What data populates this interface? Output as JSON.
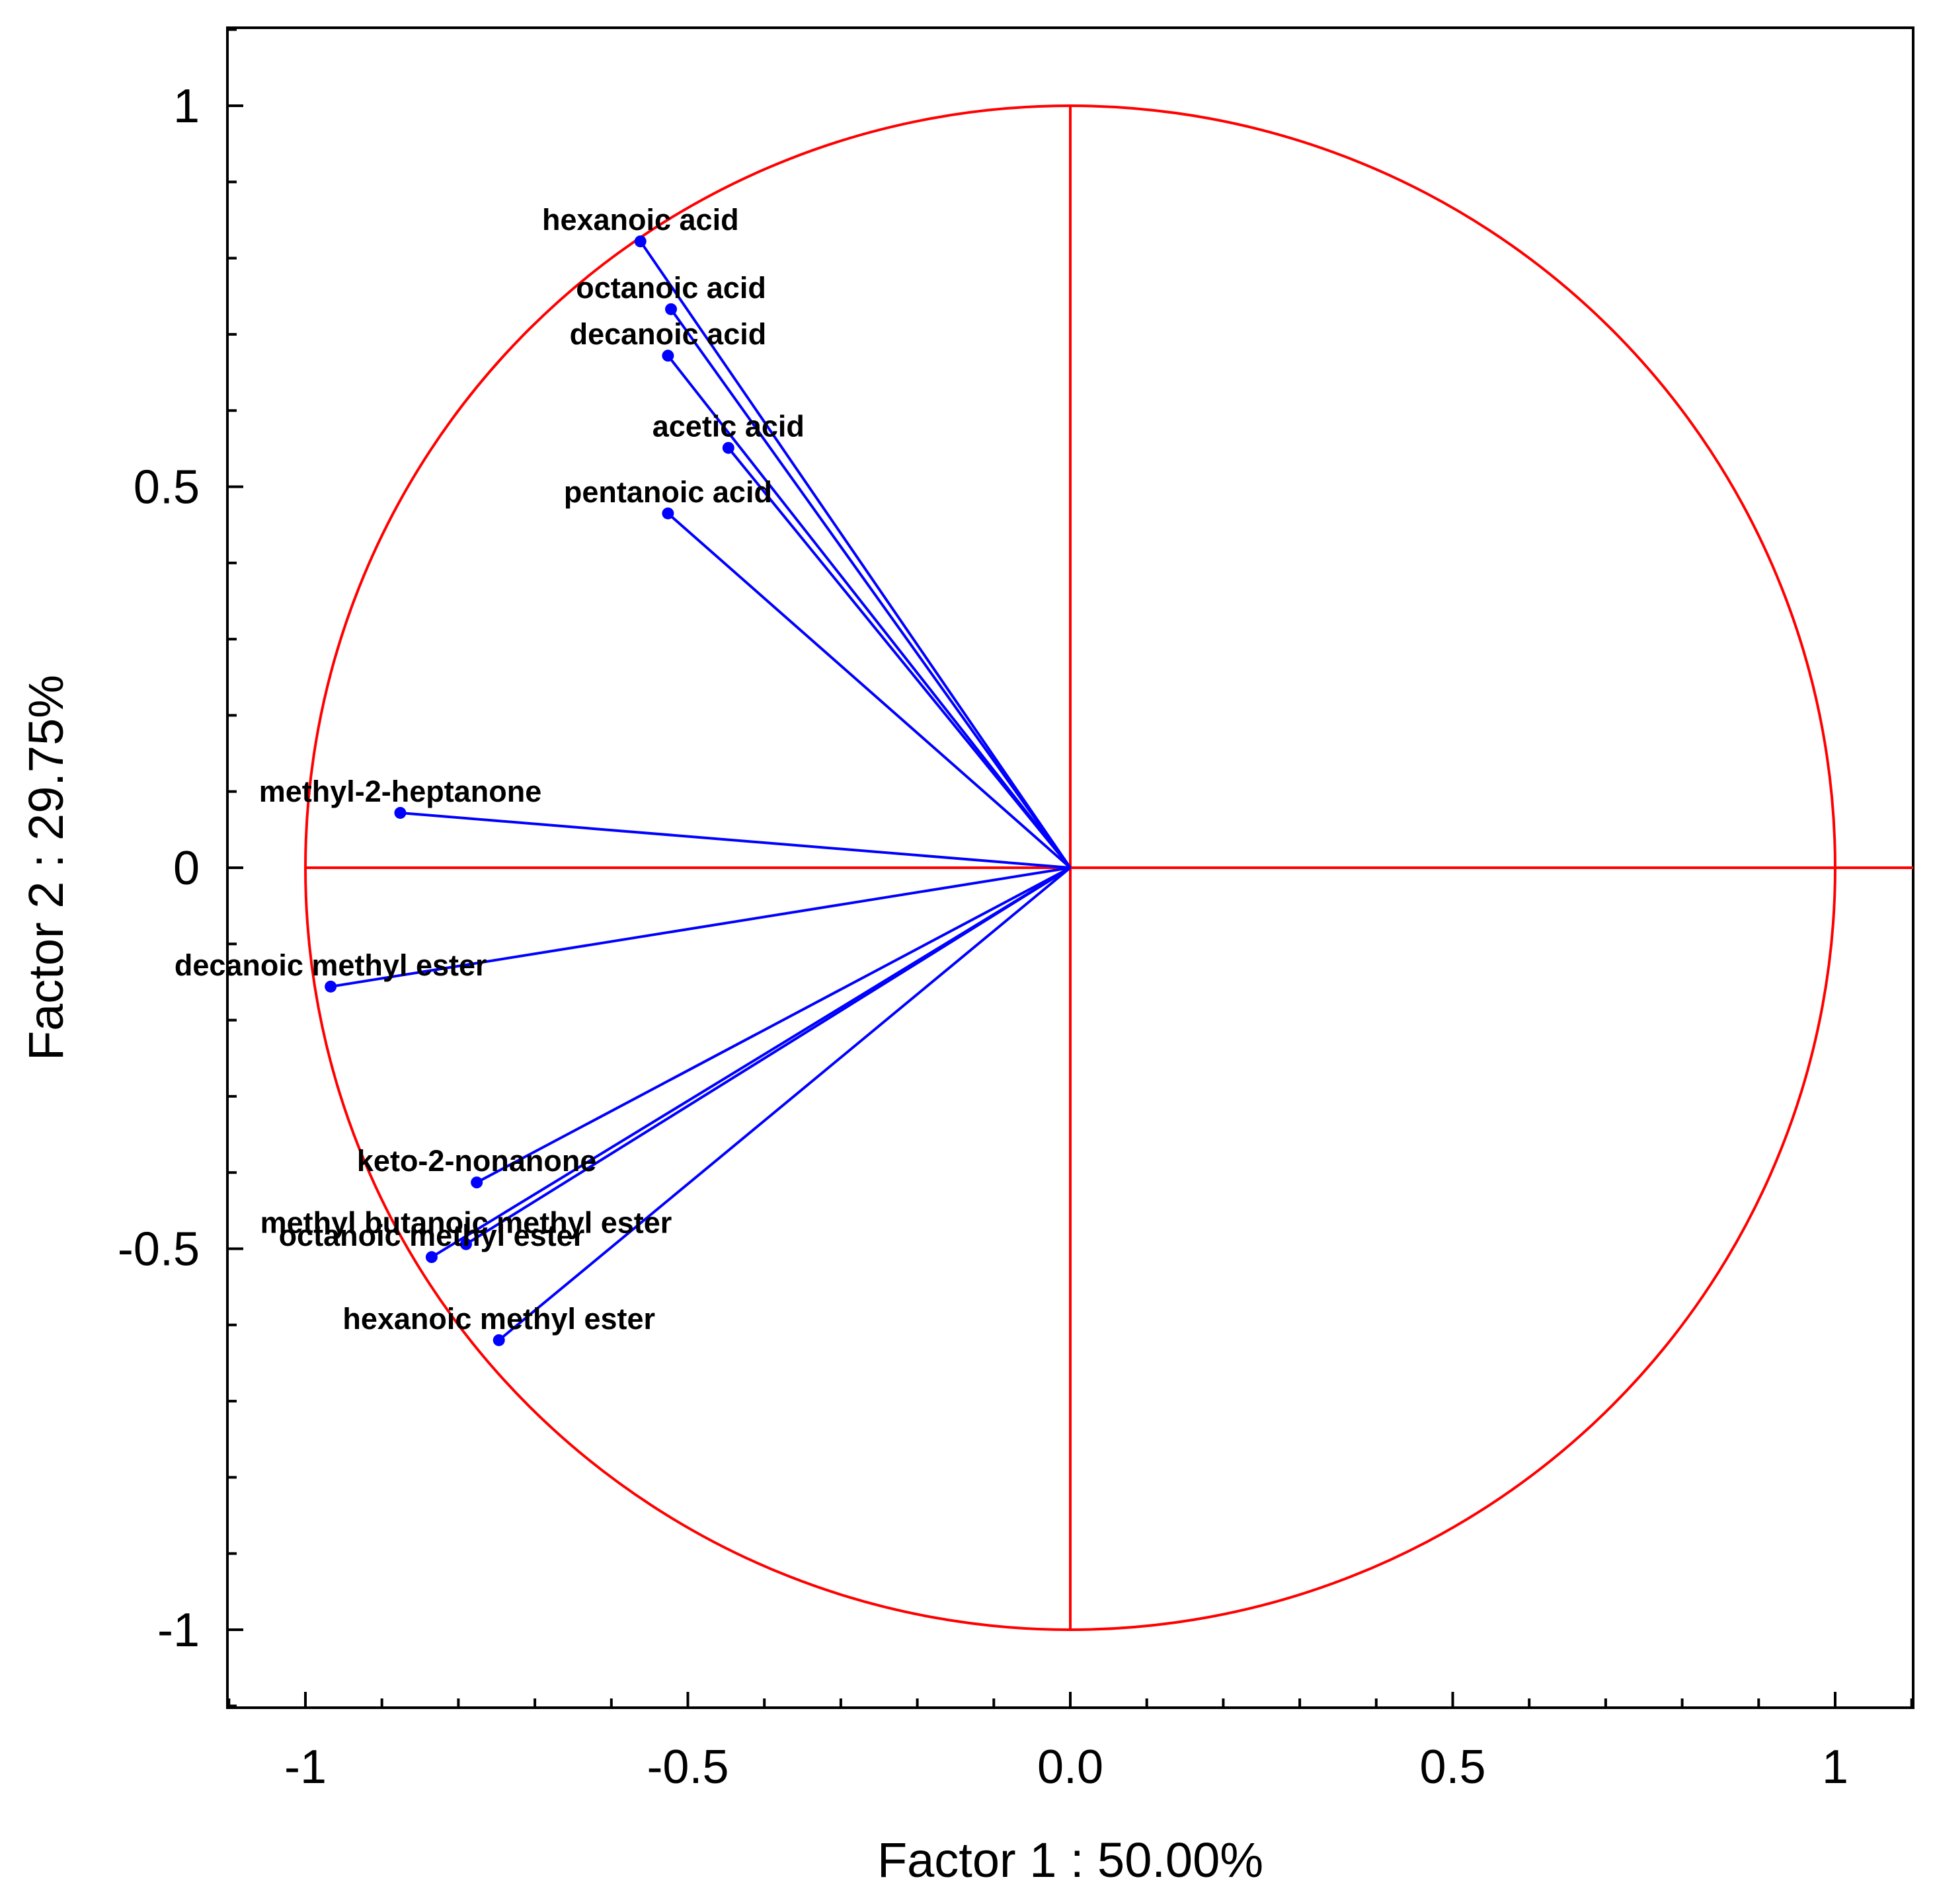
{
  "chart_data": {
    "type": "scatter",
    "subtype": "pca-correlation-circle",
    "title": "",
    "xlabel": "Factor 1 : 50.00%",
    "ylabel": "Factor 2 : 29.75%",
    "xlim": [
      -1.1,
      1.1
    ],
    "ylim": [
      -1.1,
      1.1
    ],
    "grid": false,
    "x_ticks": [
      {
        "value": -1,
        "label": "-1"
      },
      {
        "value": -0.5,
        "label": "-0.5"
      },
      {
        "value": 0,
        "label": "0.0"
      },
      {
        "value": 0.5,
        "label": "0.5"
      },
      {
        "value": 1,
        "label": "1"
      }
    ],
    "y_ticks": [
      {
        "value": 1,
        "label": "1"
      },
      {
        "value": 0.5,
        "label": "0.5"
      },
      {
        "value": 0,
        "label": "0"
      },
      {
        "value": -0.5,
        "label": "-0.5"
      },
      {
        "value": -1,
        "label": "-1"
      }
    ],
    "minor_tick_step": 0.1,
    "circle_radius": 1,
    "colors": {
      "circle": "#ff0000",
      "vectors": "#0000ff",
      "axes": "#000000"
    },
    "points": [
      {
        "label": "hexanoic acid",
        "x": -0.562,
        "y": 0.822
      },
      {
        "label": "octanoic acid",
        "x": -0.522,
        "y": 0.733
      },
      {
        "label": "decanoic acid",
        "x": -0.526,
        "y": 0.672
      },
      {
        "label": "acetic acid",
        "x": -0.447,
        "y": 0.551
      },
      {
        "label": "pentanoic acid",
        "x": -0.526,
        "y": 0.465
      },
      {
        "label": "methyl-2-heptanone",
        "x": -0.876,
        "y": 0.072
      },
      {
        "label": "decanoic methyl ester",
        "x": -0.967,
        "y": -0.156
      },
      {
        "label": "keto-2-nonanone",
        "x": -0.776,
        "y": -0.413
      },
      {
        "label": "methyl butanoic methyl ester",
        "x": -0.79,
        "y": -0.494
      },
      {
        "label": "octanoic methyl ester",
        "x": -0.835,
        "y": -0.511
      },
      {
        "label": "hexanoic methyl ester",
        "x": -0.747,
        "y": -0.62
      }
    ]
  }
}
